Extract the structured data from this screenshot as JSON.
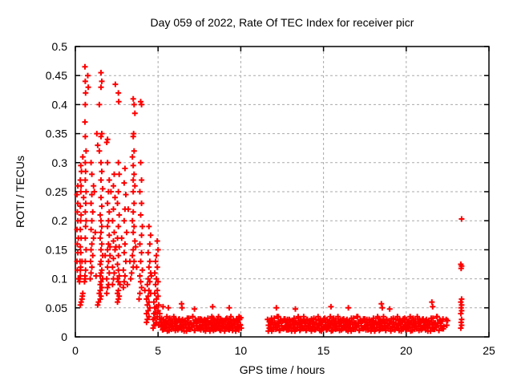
{
  "page": {
    "background": "#ffffff"
  },
  "chart_data": {
    "type": "scatter",
    "title": "Day 059 of 2022, Rate Of TEC Index for receiver picr",
    "xlabel": "GPS time / hours",
    "ylabel": "ROTI / TECUs",
    "xlim": [
      0,
      25
    ],
    "ylim": [
      0,
      0.5
    ],
    "xticks": [
      0,
      5,
      10,
      15,
      20,
      25
    ],
    "xtick_labels": [
      "0",
      "5",
      "10",
      "15",
      "20",
      "25"
    ],
    "yticks": [
      0,
      0.05,
      0.1,
      0.15,
      0.2,
      0.25,
      0.3,
      0.35,
      0.4,
      0.45,
      0.5
    ],
    "ytick_labels": [
      "0",
      "0.05",
      "0.1",
      "0.15",
      "0.2",
      "0.25",
      "0.3",
      "0.35",
      "0.4",
      "0.45",
      "0.5"
    ],
    "grid": {
      "show": true,
      "style": "dashed",
      "color": "#aaaaaa"
    },
    "legend": {
      "show": false
    },
    "marker": {
      "shape": "plus",
      "color": "#ff0000",
      "size": 7
    },
    "series_name": "ROTI",
    "points": [
      [
        0.12,
        0.115
      ],
      [
        0.18,
        0.1
      ],
      [
        0.1,
        0.13
      ],
      [
        0.15,
        0.145
      ],
      [
        0.12,
        0.16
      ],
      [
        0.18,
        0.17
      ],
      [
        0.1,
        0.185
      ],
      [
        0.15,
        0.2
      ],
      [
        0.12,
        0.215
      ],
      [
        0.15,
        0.23
      ],
      [
        0.1,
        0.245
      ],
      [
        0.15,
        0.26
      ],
      [
        0.3,
        0.055
      ],
      [
        0.35,
        0.06
      ],
      [
        0.4,
        0.065
      ],
      [
        0.42,
        0.07
      ],
      [
        0.45,
        0.075
      ],
      [
        0.25,
        0.095
      ],
      [
        0.27,
        0.1
      ],
      [
        0.3,
        0.105
      ],
      [
        0.3,
        0.115
      ],
      [
        0.32,
        0.12
      ],
      [
        0.28,
        0.13
      ],
      [
        0.4,
        0.13
      ],
      [
        0.33,
        0.145
      ],
      [
        0.3,
        0.155
      ],
      [
        0.35,
        0.17
      ],
      [
        0.3,
        0.185
      ],
      [
        0.32,
        0.2
      ],
      [
        0.35,
        0.21
      ],
      [
        0.3,
        0.225
      ],
      [
        0.5,
        0.24
      ],
      [
        0.33,
        0.25
      ],
      [
        0.35,
        0.26
      ],
      [
        0.3,
        0.27
      ],
      [
        0.37,
        0.285
      ],
      [
        0.33,
        0.295
      ],
      [
        0.45,
        0.31
      ],
      [
        0.55,
        0.095
      ],
      [
        0.6,
        0.1
      ],
      [
        0.58,
        0.105
      ],
      [
        0.62,
        0.115
      ],
      [
        0.6,
        0.13
      ],
      [
        0.65,
        0.15
      ],
      [
        0.6,
        0.17
      ],
      [
        0.62,
        0.19
      ],
      [
        0.65,
        0.2
      ],
      [
        0.6,
        0.215
      ],
      [
        0.63,
        0.23
      ],
      [
        0.65,
        0.25
      ],
      [
        0.6,
        0.27
      ],
      [
        0.62,
        0.285
      ],
      [
        0.6,
        0.3
      ],
      [
        0.65,
        0.32
      ],
      [
        0.6,
        0.345
      ],
      [
        0.58,
        0.37
      ],
      [
        0.6,
        0.4
      ],
      [
        0.62,
        0.42
      ],
      [
        0.6,
        0.44
      ],
      [
        0.58,
        0.465
      ],
      [
        0.75,
        0.45
      ],
      [
        0.78,
        0.43
      ],
      [
        0.9,
        0.1
      ],
      [
        0.95,
        0.11
      ],
      [
        1.0,
        0.12
      ],
      [
        0.92,
        0.13
      ],
      [
        1.05,
        0.14
      ],
      [
        0.95,
        0.15
      ],
      [
        1.0,
        0.16
      ],
      [
        1.1,
        0.17
      ],
      [
        0.95,
        0.185
      ],
      [
        1.0,
        0.2
      ],
      [
        1.05,
        0.215
      ],
      [
        0.95,
        0.23
      ],
      [
        1.0,
        0.245
      ],
      [
        1.1,
        0.26
      ],
      [
        1.0,
        0.28
      ],
      [
        0.95,
        0.3
      ],
      [
        1.15,
        0.25
      ],
      [
        1.2,
        0.18
      ],
      [
        1.25,
        0.105
      ],
      [
        1.35,
        0.055
      ],
      [
        1.4,
        0.06
      ],
      [
        1.5,
        0.065
      ],
      [
        1.55,
        0.07
      ],
      [
        1.45,
        0.075
      ],
      [
        1.5,
        0.08
      ],
      [
        1.6,
        0.085
      ],
      [
        1.5,
        0.09
      ],
      [
        1.55,
        0.095
      ],
      [
        1.65,
        0.1
      ],
      [
        1.5,
        0.105
      ],
      [
        1.55,
        0.11
      ],
      [
        1.6,
        0.115
      ],
      [
        1.5,
        0.125
      ],
      [
        1.55,
        0.13
      ],
      [
        1.65,
        0.14
      ],
      [
        1.55,
        0.15
      ],
      [
        1.6,
        0.16
      ],
      [
        1.5,
        0.17
      ],
      [
        1.55,
        0.18
      ],
      [
        1.6,
        0.19
      ],
      [
        1.55,
        0.2
      ],
      [
        1.5,
        0.21
      ],
      [
        1.6,
        0.225
      ],
      [
        1.55,
        0.24
      ],
      [
        1.65,
        0.255
      ],
      [
        1.55,
        0.27
      ],
      [
        1.6,
        0.285
      ],
      [
        1.55,
        0.3
      ],
      [
        1.45,
        0.32
      ],
      [
        1.3,
        0.35
      ],
      [
        1.35,
        0.33
      ],
      [
        1.55,
        0.345
      ],
      [
        1.6,
        0.35
      ],
      [
        1.45,
        0.4
      ],
      [
        1.55,
        0.43
      ],
      [
        1.6,
        0.44
      ],
      [
        1.55,
        0.455
      ],
      [
        1.8,
        0.14
      ],
      [
        1.9,
        0.075
      ],
      [
        1.95,
        0.085
      ],
      [
        2.0,
        0.09
      ],
      [
        1.9,
        0.1
      ],
      [
        2.05,
        0.11
      ],
      [
        1.95,
        0.12
      ],
      [
        2.0,
        0.13
      ],
      [
        2.1,
        0.14
      ],
      [
        1.95,
        0.15
      ],
      [
        2.1,
        0.155
      ],
      [
        2.0,
        0.16
      ],
      [
        2.05,
        0.175
      ],
      [
        1.95,
        0.19
      ],
      [
        2.0,
        0.2
      ],
      [
        2.05,
        0.215
      ],
      [
        1.95,
        0.23
      ],
      [
        2.0,
        0.25
      ],
      [
        2.05,
        0.27
      ],
      [
        1.95,
        0.3
      ],
      [
        1.9,
        0.335
      ],
      [
        1.95,
        0.34
      ],
      [
        2.25,
        0.09
      ],
      [
        2.3,
        0.1
      ],
      [
        2.35,
        0.11
      ],
      [
        2.25,
        0.12
      ],
      [
        2.3,
        0.135
      ],
      [
        2.4,
        0.15
      ],
      [
        2.45,
        0.155
      ],
      [
        2.3,
        0.165
      ],
      [
        2.35,
        0.18
      ],
      [
        2.25,
        0.2
      ],
      [
        2.3,
        0.22
      ],
      [
        2.4,
        0.24
      ],
      [
        2.15,
        0.25
      ],
      [
        2.3,
        0.26
      ],
      [
        2.35,
        0.28
      ],
      [
        2.42,
        0.435
      ],
      [
        2.55,
        0.06
      ],
      [
        2.6,
        0.065
      ],
      [
        2.65,
        0.07
      ],
      [
        2.55,
        0.075
      ],
      [
        2.6,
        0.08
      ],
      [
        2.7,
        0.09
      ],
      [
        2.6,
        0.095
      ],
      [
        2.55,
        0.1
      ],
      [
        2.65,
        0.105
      ],
      [
        2.6,
        0.115
      ],
      [
        2.55,
        0.125
      ],
      [
        2.6,
        0.14
      ],
      [
        2.65,
        0.155
      ],
      [
        2.55,
        0.17
      ],
      [
        2.6,
        0.19
      ],
      [
        2.65,
        0.21
      ],
      [
        2.55,
        0.23
      ],
      [
        2.6,
        0.25
      ],
      [
        2.65,
        0.28
      ],
      [
        2.6,
        0.3
      ],
      [
        2.6,
        0.42
      ],
      [
        2.62,
        0.405
      ],
      [
        2.8,
        0.17
      ],
      [
        2.9,
        0.085
      ],
      [
        2.95,
        0.095
      ],
      [
        3.0,
        0.105
      ],
      [
        2.9,
        0.115
      ],
      [
        3.05,
        0.13
      ],
      [
        2.95,
        0.145
      ],
      [
        3.0,
        0.16
      ],
      [
        3.1,
        0.18
      ],
      [
        2.95,
        0.2
      ],
      [
        3.0,
        0.22
      ],
      [
        3.05,
        0.245
      ],
      [
        2.95,
        0.265
      ],
      [
        3.0,
        0.29
      ],
      [
        3.15,
        0.09
      ],
      [
        3.2,
        0.22
      ],
      [
        3.3,
        0.13
      ],
      [
        3.35,
        0.1
      ],
      [
        3.4,
        0.11
      ],
      [
        3.5,
        0.12
      ],
      [
        3.55,
        0.13
      ],
      [
        3.45,
        0.14
      ],
      [
        3.5,
        0.15
      ],
      [
        3.6,
        0.165
      ],
      [
        3.65,
        0.155
      ],
      [
        3.5,
        0.18
      ],
      [
        3.55,
        0.19
      ],
      [
        3.45,
        0.2
      ],
      [
        3.5,
        0.215
      ],
      [
        3.55,
        0.23
      ],
      [
        3.5,
        0.25
      ],
      [
        3.6,
        0.26
      ],
      [
        3.5,
        0.27
      ],
      [
        3.55,
        0.28
      ],
      [
        3.5,
        0.295
      ],
      [
        3.45,
        0.31
      ],
      [
        3.55,
        0.32
      ],
      [
        3.5,
        0.345
      ],
      [
        3.52,
        0.35
      ],
      [
        3.5,
        0.41
      ],
      [
        3.55,
        0.4
      ],
      [
        3.6,
        0.385
      ],
      [
        3.7,
        0.12
      ],
      [
        3.85,
        0.065
      ],
      [
        3.9,
        0.075
      ],
      [
        4.0,
        0.085
      ],
      [
        3.95,
        0.095
      ],
      [
        3.9,
        0.105
      ],
      [
        4.05,
        0.115
      ],
      [
        3.95,
        0.13
      ],
      [
        4.0,
        0.145
      ],
      [
        3.9,
        0.16
      ],
      [
        4.0,
        0.175
      ],
      [
        4.05,
        0.19
      ],
      [
        3.95,
        0.21
      ],
      [
        4.0,
        0.23
      ],
      [
        3.9,
        0.25
      ],
      [
        4.0,
        0.27
      ],
      [
        3.95,
        0.3
      ],
      [
        3.95,
        0.405
      ],
      [
        4.0,
        0.4
      ],
      [
        4.2,
        0.08
      ],
      [
        4.3,
        0.025
      ],
      [
        4.35,
        0.03
      ],
      [
        4.45,
        0.035
      ],
      [
        4.3,
        0.04
      ],
      [
        4.4,
        0.045
      ],
      [
        4.5,
        0.05
      ],
      [
        4.35,
        0.055
      ],
      [
        4.45,
        0.06
      ],
      [
        4.3,
        0.065
      ],
      [
        4.4,
        0.07
      ],
      [
        4.55,
        0.075
      ],
      [
        4.45,
        0.08
      ],
      [
        4.35,
        0.09
      ],
      [
        4.5,
        0.095
      ],
      [
        4.4,
        0.1
      ],
      [
        4.6,
        0.105
      ],
      [
        4.55,
        0.11
      ],
      [
        4.45,
        0.12
      ],
      [
        4.5,
        0.13
      ],
      [
        4.4,
        0.145
      ],
      [
        4.5,
        0.16
      ],
      [
        4.55,
        0.175
      ],
      [
        4.45,
        0.19
      ],
      [
        4.7,
        0.015
      ],
      [
        4.75,
        0.02
      ],
      [
        4.85,
        0.022
      ],
      [
        4.9,
        0.025
      ],
      [
        4.7,
        0.03
      ],
      [
        4.8,
        0.032
      ],
      [
        4.95,
        0.035
      ],
      [
        4.75,
        0.04
      ],
      [
        4.85,
        0.042
      ],
      [
        5.0,
        0.045
      ],
      [
        4.8,
        0.05
      ],
      [
        4.9,
        0.052
      ],
      [
        5.05,
        0.055
      ],
      [
        4.75,
        0.06
      ],
      [
        4.9,
        0.065
      ],
      [
        5.0,
        0.07
      ],
      [
        4.8,
        0.075
      ],
      [
        4.95,
        0.08
      ],
      [
        4.85,
        0.09
      ],
      [
        5.0,
        0.095
      ],
      [
        4.9,
        0.1
      ],
      [
        4.8,
        0.11
      ],
      [
        4.95,
        0.12
      ],
      [
        4.85,
        0.13
      ],
      [
        4.9,
        0.14
      ],
      [
        5.0,
        0.15
      ],
      [
        4.95,
        0.165
      ],
      [
        5.1,
        0.03
      ],
      [
        5.15,
        0.025
      ],
      [
        5.05,
        0.02
      ],
      [
        5.1,
        0.04
      ],
      [
        5.3,
        0.052
      ],
      [
        5.62,
        0.05
      ],
      [
        6.42,
        0.057
      ],
      [
        6.45,
        0.05
      ],
      [
        7.2,
        0.048
      ],
      [
        8.3,
        0.052
      ],
      [
        9.3,
        0.05
      ],
      [
        9.9,
        0.035
      ],
      [
        10.0,
        0.033
      ],
      [
        12.15,
        0.05
      ],
      [
        13.3,
        0.048
      ],
      [
        15.45,
        0.052
      ],
      [
        16.5,
        0.05
      ],
      [
        18.5,
        0.057
      ],
      [
        18.55,
        0.05
      ],
      [
        19.0,
        0.048
      ],
      [
        21.55,
        0.06
      ],
      [
        21.6,
        0.052
      ],
      [
        22.42,
        0.03
      ],
      [
        22.45,
        0.02
      ],
      [
        22.5,
        0.028
      ],
      [
        23.35,
        0.203
      ],
      [
        23.3,
        0.125
      ],
      [
        23.35,
        0.122
      ],
      [
        23.32,
        0.118
      ],
      [
        23.35,
        0.065
      ],
      [
        23.3,
        0.06
      ],
      [
        23.35,
        0.055
      ],
      [
        23.32,
        0.05
      ],
      [
        23.35,
        0.045
      ],
      [
        23.3,
        0.04
      ],
      [
        23.35,
        0.03
      ],
      [
        23.32,
        0.025
      ],
      [
        23.35,
        0.02
      ],
      [
        23.3,
        0.015
      ]
    ],
    "dense_bands": [
      {
        "x_start": 5.18,
        "x_end": 10.05,
        "step": 0.048,
        "cycle_offset": 0
      },
      {
        "x_start": 5.21,
        "x_end": 10.0,
        "step": 0.065,
        "cycle_offset": 11
      },
      {
        "x_start": 11.62,
        "x_end": 22.3,
        "step": 0.05,
        "cycle_offset": 3
      },
      {
        "x_start": 11.66,
        "x_end": 22.28,
        "step": 0.067,
        "cycle_offset": 8
      }
    ],
    "band_y_cycle": [
      0.018,
      0.025,
      0.012,
      0.03,
      0.02,
      0.015,
      0.028,
      0.022,
      0.01,
      0.026,
      0.016,
      0.032,
      0.021,
      0.013,
      0.024,
      0.017,
      0.035,
      0.023,
      0.011,
      0.029,
      0.019,
      0.027,
      0.014,
      0.031
    ]
  }
}
